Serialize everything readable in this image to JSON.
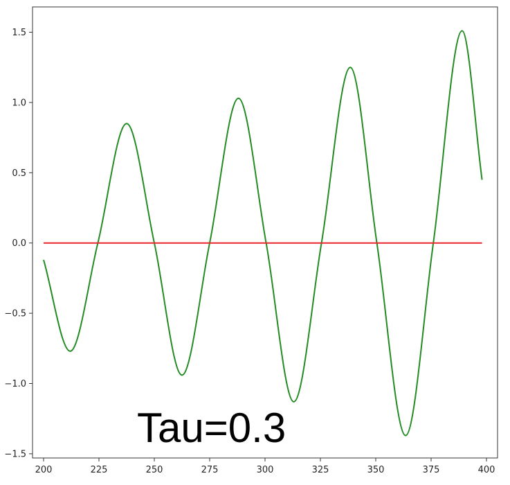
{
  "chart_data": {
    "type": "line",
    "xlim": [
      195,
      405
    ],
    "ylim": [
      -1.53,
      1.68
    ],
    "x_ticks": [
      200,
      225,
      250,
      275,
      300,
      325,
      350,
      375,
      400
    ],
    "y_ticks": [
      1.5,
      1.0,
      0.5,
      0.0,
      -0.5,
      -1.0,
      -1.5
    ],
    "x_tick_labels": [
      "200",
      "225",
      "250",
      "275",
      "300",
      "325",
      "350",
      "375",
      "400"
    ],
    "y_tick_labels": [
      "1.5",
      "1.0",
      "0.5",
      "0.0",
      "−0.5",
      "−1.0",
      "−1.5"
    ],
    "grid": false,
    "legend": "none",
    "annotation": "Tau=0.3",
    "series": [
      {
        "color": "#228b22",
        "style": "oscillating",
        "x": [
          200,
          212,
          224.5,
          237.5,
          250,
          262.5,
          275,
          288,
          300.5,
          313,
          325.5,
          338.5,
          350.5,
          363.5,
          376,
          389,
          398
        ],
        "y": [
          -0.12,
          -0.77,
          0.0,
          0.85,
          0.0,
          -0.94,
          0.0,
          1.03,
          0.0,
          -1.13,
          0.0,
          1.25,
          0.0,
          -1.37,
          0.0,
          1.51,
          0.45
        ]
      },
      {
        "color": "#e8262a",
        "style": "straight",
        "x": [
          200,
          398
        ],
        "y": [
          0.0,
          0.0
        ]
      }
    ]
  }
}
